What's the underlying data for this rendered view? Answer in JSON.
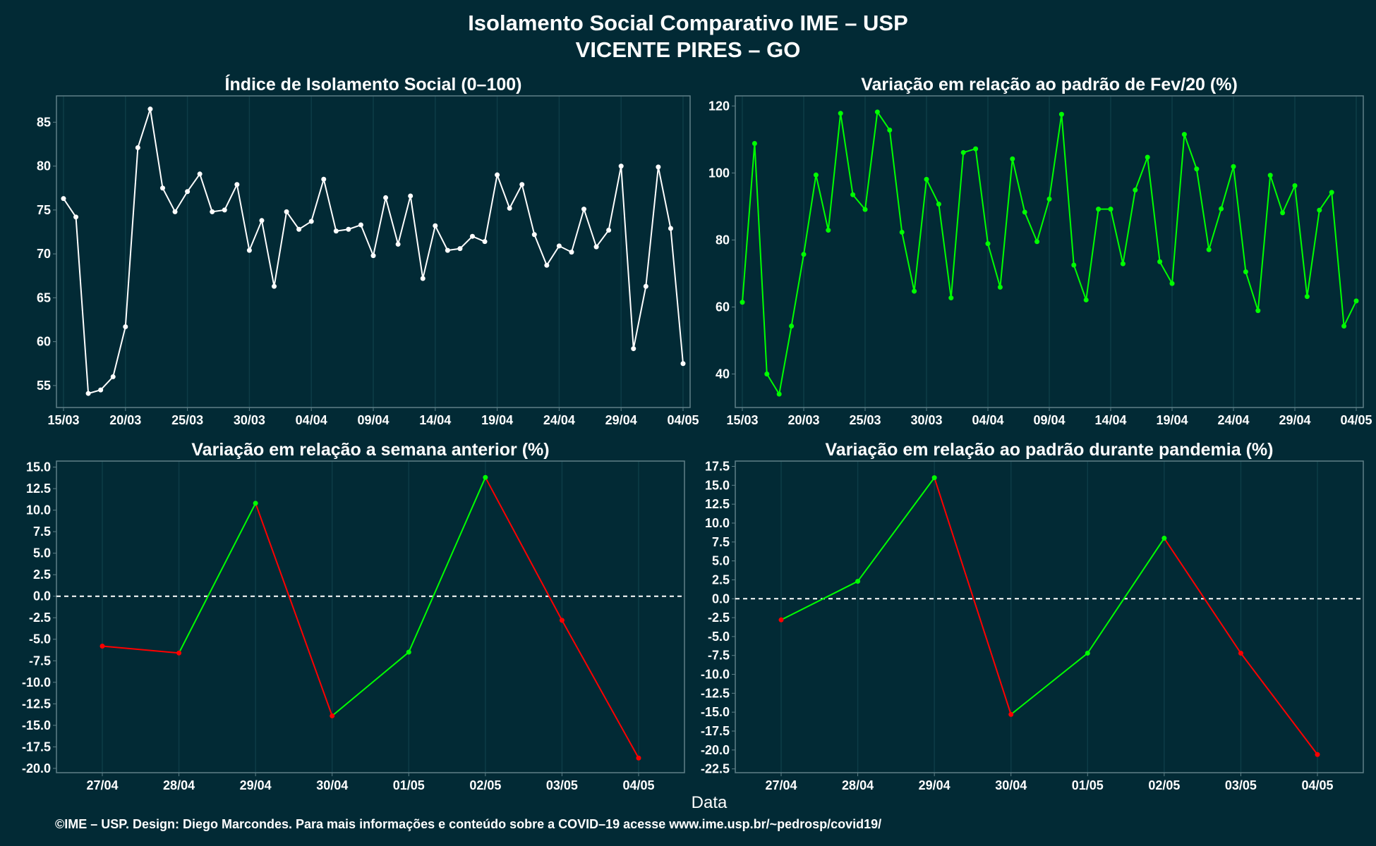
{
  "title_line1": "Isolamento Social Comparativo IME – USP",
  "title_line2": "VICENTE PIRES – GO",
  "xlabel": "Data",
  "footer": "©IME – USP. Design: Diego Marcondes. Para mais informações e conteúdo sobre a COVID–19 acesse www.ime.usp.br/~pedrosp/covid19/",
  "colors": {
    "background": "#022a35",
    "frame": "#5f8088",
    "grid": "#0d3c47",
    "text": "#ffffff",
    "white_series": "#ffffff",
    "green_series": "#00ff00",
    "red_series": "#ff0000"
  },
  "chart_data": [
    {
      "type": "line",
      "title": "Índice de Isolamento Social (0–100)",
      "x_start": "15/03",
      "tick_labels": [
        "15/03",
        "20/03",
        "25/03",
        "30/03",
        "04/04",
        "09/04",
        "14/04",
        "19/04",
        "24/04",
        "29/04",
        "04/05"
      ],
      "ylim": [
        52.5,
        88
      ],
      "y_ticks": [
        "55",
        "60",
        "65",
        "70",
        "75",
        "80",
        "85"
      ],
      "color": "white",
      "values": [
        76.3,
        74.2,
        54.1,
        54.5,
        56.0,
        61.7,
        82.1,
        86.5,
        77.5,
        74.8,
        77.1,
        79.1,
        74.8,
        75.0,
        77.9,
        70.4,
        73.8,
        66.3,
        74.8,
        72.8,
        73.7,
        78.5,
        72.6,
        72.8,
        73.3,
        69.8,
        76.4,
        71.1,
        76.6,
        67.2,
        73.2,
        70.4,
        70.6,
        72.0,
        71.4,
        79.0,
        75.2,
        77.9,
        72.2,
        68.7,
        70.9,
        70.2,
        75.1,
        70.8,
        72.7,
        80.0,
        59.2,
        66.3,
        79.9,
        72.9,
        57.5
      ]
    },
    {
      "type": "line",
      "title": "Variação em relação ao padrão de Fev/20 (%)",
      "x_start": "15/03",
      "tick_labels": [
        "15/03",
        "20/03",
        "25/03",
        "30/03",
        "04/04",
        "09/04",
        "14/04",
        "19/04",
        "24/04",
        "29/04",
        "04/05"
      ],
      "ylim": [
        30,
        123
      ],
      "y_ticks": [
        "40",
        "60",
        "80",
        "100",
        "120"
      ],
      "color": "green",
      "values": [
        61.4,
        108.8,
        40.0,
        34.0,
        54.3,
        75.7,
        99.4,
        82.9,
        117.8,
        93.5,
        89.1,
        118.2,
        112.8,
        82.3,
        64.7,
        98.1,
        90.7,
        62.7,
        106.1,
        107.2,
        78.9,
        65.9,
        104.2,
        88.3,
        79.5,
        92.2,
        117.5,
        72.5,
        62.1,
        89.2,
        89.2,
        72.9,
        94.9,
        104.7,
        73.5,
        67.0,
        111.5,
        101.2,
        77.1,
        89.3,
        101.9,
        70.5,
        58.9,
        99.3,
        88.1,
        96.2,
        63.1,
        88.9,
        94.2,
        54.3,
        61.8
      ]
    },
    {
      "type": "line",
      "title": "Variação em relação a semana anterior (%)",
      "categories": [
        "27/04",
        "28/04",
        "29/04",
        "30/04",
        "01/05",
        "02/05",
        "03/05",
        "04/05"
      ],
      "values": [
        -5.8,
        -6.6,
        10.8,
        -13.9,
        -6.5,
        13.8,
        -2.8,
        -18.8
      ],
      "ylim": [
        -20.5,
        15.7
      ],
      "y_ticks": [
        "15.0",
        "12.5",
        "10.0",
        "7.5",
        "5.0",
        "2.5",
        "0.0",
        "-2.5",
        "-5.0",
        "-7.5",
        "-10.0",
        "-12.5",
        "-15.0",
        "-17.5",
        "-20.0"
      ],
      "reference_line": 0,
      "color_rule": "segment green when rising, red when falling"
    },
    {
      "type": "line",
      "title": "Variação em relação ao padrão durante pandemia (%)",
      "categories": [
        "27/04",
        "28/04",
        "29/04",
        "30/04",
        "01/05",
        "02/05",
        "03/05",
        "04/05"
      ],
      "values": [
        -2.8,
        2.3,
        16.0,
        -15.3,
        -7.2,
        8.0,
        -7.2,
        -20.6
      ],
      "ylim": [
        -23,
        18.2
      ],
      "y_ticks": [
        "17.5",
        "15.0",
        "12.5",
        "10.0",
        "7.5",
        "5.0",
        "2.5",
        "0.0",
        "-2.5",
        "-5.0",
        "-7.5",
        "-10.0",
        "-12.5",
        "-15.0",
        "-17.5",
        "-20.0",
        "-22.5"
      ],
      "reference_line": 0,
      "color_rule": "segment green when rising, red when falling"
    }
  ]
}
